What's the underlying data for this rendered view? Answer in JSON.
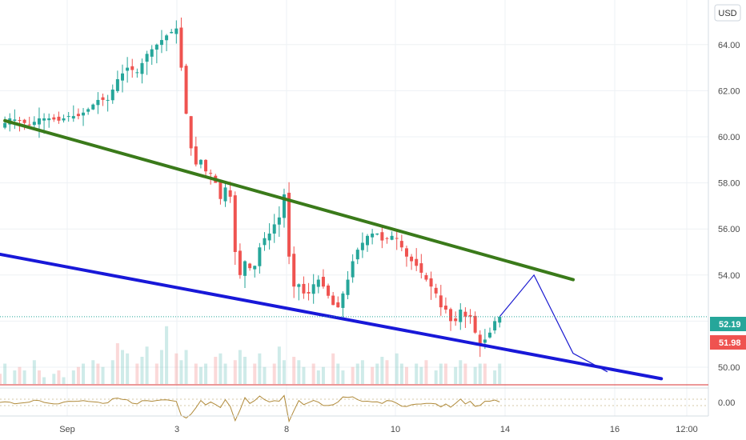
{
  "chart_data": {
    "type": "candlestick",
    "currency": "USD",
    "y_range": [
      49.2,
      65.5
    ],
    "y_ticks": [
      "50.00",
      "52.00",
      "54.00",
      "56.00",
      "58.00",
      "60.00",
      "62.00",
      "64.00"
    ],
    "x_ticks": [
      "Sep",
      "3",
      "8",
      "10",
      "14",
      "16",
      "12:00"
    ],
    "price_tags": [
      {
        "label": "52.19",
        "value": 52.19,
        "color": "#26a69a"
      },
      {
        "label": "51.98",
        "value": 51.98,
        "color": "#ef5350"
      }
    ],
    "indicator_tick": "0.00",
    "grid": true,
    "series_anchor": [
      [
        0,
        60.4
      ],
      [
        2,
        60.8
      ],
      [
        4,
        60.7
      ],
      [
        6,
        60.5
      ],
      [
        8,
        60.8
      ],
      [
        10,
        60.8
      ],
      [
        12,
        60.7
      ],
      [
        14,
        60.9
      ],
      [
        16,
        60.9
      ],
      [
        18,
        61.2
      ],
      [
        20,
        61.6
      ],
      [
        22,
        61.6
      ],
      [
        24,
        62.5
      ],
      [
        26,
        63.0
      ],
      [
        28,
        62.8
      ],
      [
        30,
        63.6
      ],
      [
        32,
        64.0
      ],
      [
        34,
        64.4
      ],
      [
        36,
        64.7
      ],
      [
        37,
        63.0
      ],
      [
        38,
        61.0
      ],
      [
        39,
        59.5
      ],
      [
        40,
        58.8
      ],
      [
        41,
        59.0
      ],
      [
        42,
        58.5
      ],
      [
        43,
        58.4
      ],
      [
        44,
        58.0
      ],
      [
        45,
        57.3
      ],
      [
        46,
        57.8
      ],
      [
        47,
        57.4
      ],
      [
        48,
        55.0
      ],
      [
        49,
        54.0
      ],
      [
        50,
        54.6
      ],
      [
        51,
        54.3
      ],
      [
        52,
        54.4
      ],
      [
        53,
        55.2
      ],
      [
        54,
        55.6
      ],
      [
        55,
        55.8
      ],
      [
        56,
        56.2
      ],
      [
        57,
        56.5
      ],
      [
        58,
        57.5
      ],
      [
        59,
        54.8
      ],
      [
        60,
        53.5
      ],
      [
        61,
        53.6
      ],
      [
        62,
        53.2
      ],
      [
        63,
        53.2
      ],
      [
        64,
        53.6
      ],
      [
        65,
        53.8
      ],
      [
        66,
        53.5
      ],
      [
        67,
        53.1
      ],
      [
        68,
        52.7
      ],
      [
        69,
        52.6
      ],
      [
        70,
        53.2
      ],
      [
        71,
        53.8
      ],
      [
        72,
        54.6
      ],
      [
        73,
        55.1
      ],
      [
        74,
        55.4
      ],
      [
        75,
        55.7
      ],
      [
        76,
        55.8
      ],
      [
        77,
        55.8
      ],
      [
        78,
        55.5
      ],
      [
        79,
        55.6
      ],
      [
        80,
        55.7
      ],
      [
        81,
        55.6
      ],
      [
        82,
        55.2
      ],
      [
        83,
        54.8
      ],
      [
        84,
        54.6
      ],
      [
        85,
        54.4
      ],
      [
        86,
        54.1
      ],
      [
        87,
        53.8
      ],
      [
        88,
        53.5
      ],
      [
        89,
        53.2
      ],
      [
        90,
        52.6
      ],
      [
        91,
        52.5
      ],
      [
        92,
        52.0
      ],
      [
        93,
        52.0
      ],
      [
        94,
        52.5
      ],
      [
        95,
        52.2
      ],
      [
        96,
        52.2
      ],
      [
        97,
        51.5
      ],
      [
        98,
        51.0
      ],
      [
        99,
        51.2
      ],
      [
        100,
        51.5
      ],
      [
        101,
        52.0
      ],
      [
        102,
        52.19
      ]
    ],
    "volume_heights": [
      0.15,
      0.3,
      0.2,
      0.25,
      0.2,
      0.35,
      0.2,
      0.1,
      0.15,
      0.2,
      0.1,
      0.2,
      0.25,
      0.3,
      0.35,
      0.3,
      0.25,
      0.35,
      0.6,
      0.5,
      0.45,
      0.3,
      0.4,
      0.55,
      0.3,
      0.5,
      0.85,
      0.45,
      0.35,
      0.5,
      0.3,
      0.25,
      0.3,
      0.4,
      0.45,
      0.3,
      0.35,
      0.5,
      0.4,
      0.3,
      0.45,
      0.25,
      0.3,
      0.55,
      0.35,
      0.4,
      0.35,
      0.25,
      0.3,
      0.2,
      0.25,
      0.45,
      0.3,
      0.2,
      0.25,
      0.3,
      0.35,
      0.25,
      0.3,
      0.4,
      0.35,
      0.45,
      0.3,
      0.25,
      0.3,
      0.25,
      0.35,
      0.2,
      0.3,
      0.3,
      0.25,
      0.35,
      0.3,
      0.25,
      0.3,
      0.3,
      0.2,
      0.3
    ],
    "upper_trendline": {
      "from": [
        1,
        60.7
      ],
      "to": [
        117,
        53.8
      ]
    },
    "lower_trendline": {
      "from": [
        -10,
        55.3
      ],
      "to": [
        135,
        49.5
      ]
    },
    "projection_path": [
      [
        102,
        52.19
      ],
      [
        109,
        54.0
      ],
      [
        117,
        50.6
      ],
      [
        124,
        49.8
      ]
    ]
  }
}
